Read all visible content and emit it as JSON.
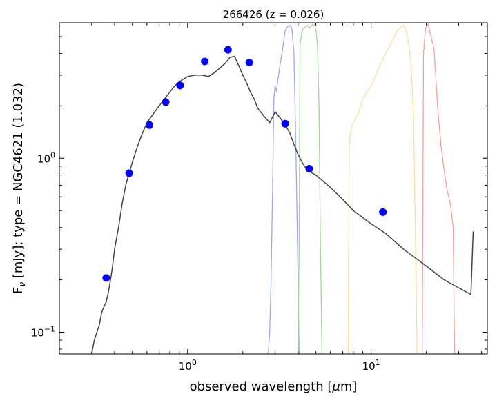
{
  "chart_data": {
    "type": "line",
    "title": "266426 (z = 0.026)",
    "xlabel_parts": {
      "prefix": "observed wavelength [",
      "unit_sym": "μ",
      "suffix": "m]"
    },
    "ylabel_parts": {
      "prefix": "F",
      "subscript": "ν",
      "suffix": " [mJy];  type = NGC4621 (1.032)"
    },
    "x_scale": "log",
    "y_scale": "log",
    "xlim": [
      0.2,
      43
    ],
    "ylim": [
      0.075,
      6.0
    ],
    "x_ticks": [
      {
        "value": 1,
        "base": "10",
        "exp": "0"
      },
      {
        "value": 10,
        "base": "10",
        "exp": "1"
      }
    ],
    "y_ticks": [
      {
        "value": 0.1,
        "base": "10",
        "exp": "−1"
      },
      {
        "value": 1,
        "base": "10",
        "exp": "0"
      }
    ],
    "grid": false,
    "colors": {
      "model": "#444444",
      "points": "#0000ff",
      "filter_blue": "#9fa8f0",
      "filter_green": "#a8d4a0",
      "filter_orange": "#ffdca0",
      "filter_red": "#f4a0a0"
    },
    "series": [
      {
        "kind": "model",
        "x": [
          0.3,
          0.31,
          0.32,
          0.33,
          0.34,
          0.35,
          0.36,
          0.37,
          0.38,
          0.39,
          0.4,
          0.42,
          0.44,
          0.46,
          0.48,
          0.5,
          0.53,
          0.56,
          0.6,
          0.65,
          0.7,
          0.75,
          0.8,
          0.85,
          0.9,
          0.95,
          1.0,
          1.1,
          1.2,
          1.3,
          1.4,
          1.5,
          1.6,
          1.7,
          1.8,
          1.9,
          2.0,
          2.1,
          2.2,
          2.3,
          2.4,
          2.6,
          2.8,
          3.0,
          3.2,
          3.4,
          3.6,
          3.8,
          4.0,
          4.2,
          4.4,
          4.6,
          5.0,
          6.0,
          7.0,
          8.0,
          10.0,
          12.0,
          15.0,
          20.0,
          25.0,
          30.0,
          35.0,
          36.0
        ],
        "y": [
          0.075,
          0.09,
          0.1,
          0.11,
          0.13,
          0.14,
          0.15,
          0.17,
          0.2,
          0.24,
          0.3,
          0.4,
          0.55,
          0.7,
          0.82,
          0.95,
          1.15,
          1.35,
          1.6,
          1.8,
          2.0,
          2.2,
          2.4,
          2.6,
          2.75,
          2.85,
          2.95,
          3.0,
          3.0,
          2.95,
          3.1,
          3.3,
          3.5,
          3.8,
          3.85,
          3.4,
          3.0,
          2.7,
          2.4,
          2.2,
          1.95,
          1.75,
          1.6,
          1.85,
          1.7,
          1.55,
          1.4,
          1.2,
          1.05,
          0.95,
          0.88,
          0.84,
          0.8,
          0.68,
          0.58,
          0.5,
          0.42,
          0.37,
          0.3,
          0.24,
          0.2,
          0.18,
          0.165,
          0.38
        ]
      },
      {
        "kind": "photometry",
        "x": [
          0.36,
          0.48,
          0.62,
          0.76,
          0.91,
          1.24,
          1.66,
          2.17,
          3.4,
          4.6,
          11.6
        ],
        "y": [
          0.205,
          0.82,
          1.55,
          2.1,
          2.62,
          3.6,
          4.2,
          3.55,
          1.58,
          0.87,
          0.49
        ]
      },
      {
        "kind": "filter",
        "color_key": "filter_blue",
        "x": [
          2.75,
          2.8,
          2.85,
          2.9,
          2.95,
          3.0,
          3.05,
          3.1,
          3.2,
          3.3,
          3.4,
          3.5,
          3.6,
          3.7,
          3.8,
          3.9,
          4.0,
          4.05
        ],
        "y": [
          0.075,
          0.1,
          0.2,
          0.6,
          2.2,
          2.6,
          2.4,
          2.8,
          3.5,
          4.3,
          5.4,
          5.7,
          5.8,
          5.6,
          4.0,
          1.0,
          0.2,
          0.075
        ]
      },
      {
        "kind": "filter",
        "color_key": "filter_green",
        "x": [
          4.0,
          4.05,
          4.1,
          4.2,
          4.3,
          4.4,
          4.5,
          4.6,
          4.7,
          4.8,
          4.9,
          5.0,
          5.1,
          5.2,
          5.3,
          5.4
        ],
        "y": [
          0.075,
          0.3,
          4.5,
          5.4,
          5.6,
          5.7,
          5.8,
          5.6,
          5.7,
          5.9,
          5.8,
          5.5,
          4.5,
          2.0,
          0.3,
          0.075
        ]
      },
      {
        "kind": "filter",
        "color_key": "filter_orange",
        "x": [
          7.5,
          7.6,
          7.8,
          8.0,
          8.5,
          9.0,
          10.0,
          11.0,
          12.0,
          13.0,
          14.0,
          15.0,
          15.5,
          16.0,
          16.5,
          17.0,
          17.5,
          17.8
        ],
        "y": [
          0.075,
          1.2,
          1.5,
          1.6,
          1.8,
          2.2,
          2.6,
          3.3,
          4.0,
          4.7,
          5.5,
          5.8,
          5.5,
          4.5,
          3.5,
          1.8,
          0.3,
          0.075
        ]
      },
      {
        "kind": "filter",
        "color_key": "filter_red",
        "x": [
          19.0,
          19.3,
          19.8,
          20.5,
          21.0,
          21.5,
          22.0,
          22.5,
          23.0,
          24.0,
          25.0,
          26.0,
          27.0,
          28.0,
          28.5
        ],
        "y": [
          0.075,
          4.0,
          5.6,
          5.9,
          5.2,
          4.7,
          4.3,
          3.0,
          2.0,
          1.2,
          0.85,
          0.65,
          0.55,
          0.4,
          0.075
        ]
      }
    ]
  }
}
